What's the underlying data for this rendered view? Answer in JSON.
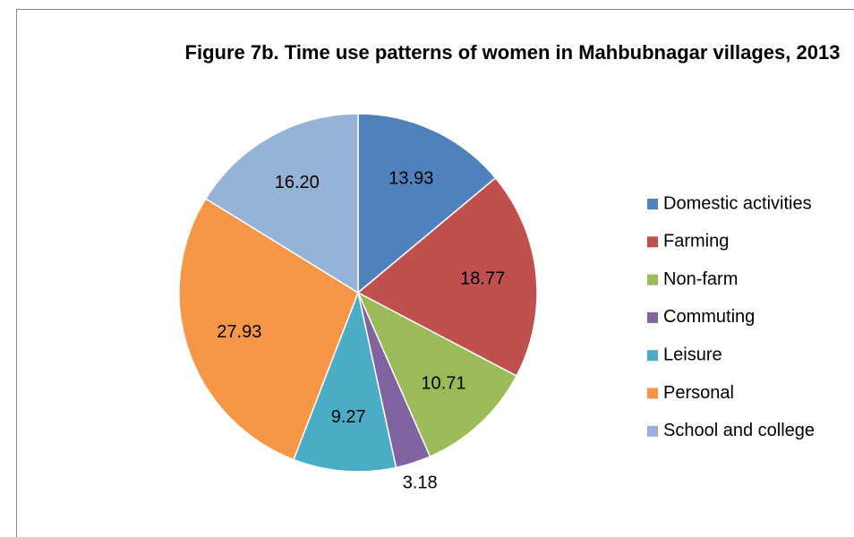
{
  "chart_data": {
    "type": "pie",
    "title": "Figure 7b. Time use patterns of women in Mahbubnagar villages,  2013",
    "categories": [
      "Domestic activities",
      "Farming",
      "Non-farm",
      "Commuting",
      "Leisure",
      "Personal",
      "School and college"
    ],
    "values": [
      13.93,
      18.77,
      10.71,
      3.18,
      9.27,
      27.93,
      16.2
    ],
    "value_labels": [
      "13.93",
      "18.77",
      "10.71",
      "3.18",
      "9.27",
      "27.93",
      "16.20"
    ],
    "colors": [
      "#4f81bd",
      "#c0504d",
      "#9bbb59",
      "#8064a2",
      "#4bacc6",
      "#f79646",
      "#95b3d7"
    ],
    "legend": "right"
  }
}
